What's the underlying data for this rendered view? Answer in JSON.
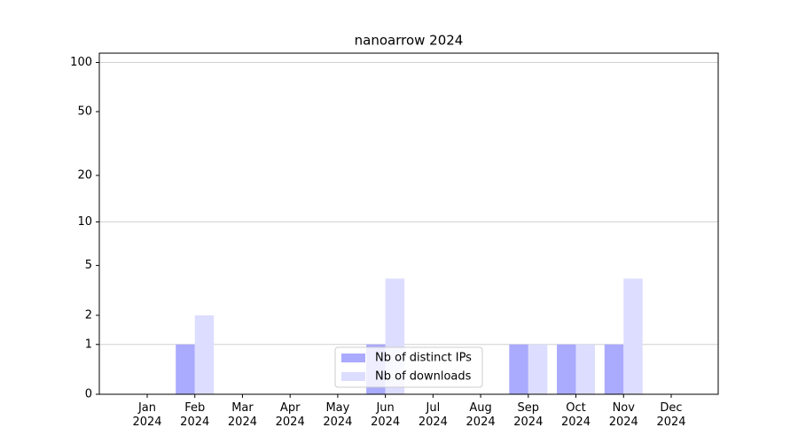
{
  "chart_data": {
    "type": "bar",
    "title": "nanoarrow 2024",
    "categories": [
      "Jan 2024",
      "Feb 2024",
      "Mar 2024",
      "Apr 2024",
      "May 2024",
      "Jun 2024",
      "Jul 2024",
      "Aug 2024",
      "Sep 2024",
      "Oct 2024",
      "Nov 2024",
      "Dec 2024"
    ],
    "series": [
      {
        "name": "Nb of distinct IPs",
        "color": "#aaaaff",
        "values": [
          0,
          1,
          0,
          0,
          0,
          1,
          0,
          0,
          1,
          1,
          1,
          0
        ]
      },
      {
        "name": "Nb of downloads",
        "color": "#ddddff",
        "values": [
          0,
          2,
          0,
          0,
          0,
          4,
          0,
          0,
          1,
          1,
          4,
          0
        ]
      }
    ],
    "yscale": "log1p",
    "ylim": [
      0,
      114
    ],
    "yticks": [
      0,
      1,
      2,
      5,
      10,
      20,
      50,
      100
    ],
    "ygrid": [
      1,
      10,
      100
    ],
    "legend": "lower center"
  }
}
